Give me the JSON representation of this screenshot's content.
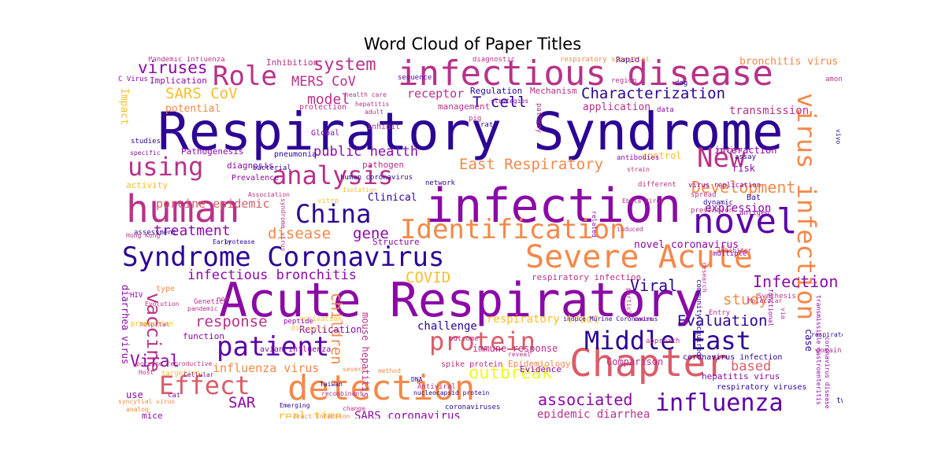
{
  "title": "Word Cloud of Paper Titles",
  "colors": {
    "c1": "#2c0594",
    "c2": "#5c01a6",
    "c3": "#8b0aa5",
    "c4": "#b83289",
    "c5": "#db5c68",
    "c6": "#f48849",
    "c7": "#febc2a",
    "c8": "#f0f921"
  },
  "words": [
    {
      "t": "Respiratory Syndrome",
      "c": "c1"
    },
    {
      "t": "Acute Respiratory",
      "c": "c3"
    },
    {
      "t": "infection",
      "c": "c3"
    },
    {
      "t": "infectious disease",
      "c": "c4"
    },
    {
      "t": "human",
      "c": "c4"
    },
    {
      "t": "detection",
      "c": "c6"
    },
    {
      "t": "Chapter",
      "c": "c5"
    },
    {
      "t": "Severe Acute",
      "c": "c6"
    },
    {
      "t": "virus infection",
      "c": "c6"
    },
    {
      "t": "novel",
      "c": "c2"
    },
    {
      "t": "Syndrome Coronavirus",
      "c": "c1"
    },
    {
      "t": "patient",
      "c": "c2"
    },
    {
      "t": "Identification",
      "c": "c6"
    },
    {
      "t": "Middle East",
      "c": "c1"
    },
    {
      "t": "protein",
      "c": "c5"
    },
    {
      "t": "Effect",
      "c": "c5"
    },
    {
      "t": "influenza",
      "c": "c2"
    },
    {
      "t": "analysis",
      "c": "c4"
    },
    {
      "t": "using",
      "c": "c4"
    },
    {
      "t": "China",
      "c": "c1"
    },
    {
      "t": "Role",
      "c": "c4"
    },
    {
      "t": "New",
      "c": "c4"
    },
    {
      "t": "Development",
      "c": "c6"
    },
    {
      "t": "outbreak",
      "c": "c8"
    },
    {
      "t": "Characterization",
      "c": "c1"
    },
    {
      "t": "East Respiratory",
      "c": "c6"
    },
    {
      "t": "system",
      "c": "c4"
    },
    {
      "t": "viruses",
      "c": "c3"
    },
    {
      "t": "SARS CoV",
      "c": "c7"
    },
    {
      "t": "MERS CoV",
      "c": "c4"
    },
    {
      "t": "T cell",
      "c": "c1"
    },
    {
      "t": "model",
      "c": "c4"
    },
    {
      "t": "Evaluation",
      "c": "c1"
    },
    {
      "t": "study",
      "c": "c6"
    },
    {
      "t": "Viral",
      "c": "c1"
    },
    {
      "t": "Viral",
      "c": "c3"
    },
    {
      "t": "Infection",
      "c": "c3"
    },
    {
      "t": "treatment",
      "c": "c3"
    },
    {
      "t": "response",
      "c": "c4"
    },
    {
      "t": "associated",
      "c": "c3"
    },
    {
      "t": "based",
      "c": "c5"
    },
    {
      "t": "COVID",
      "c": "c7"
    },
    {
      "t": "disease",
      "c": "c6"
    },
    {
      "t": "gene",
      "c": "c3"
    },
    {
      "t": "vaccine",
      "c": "c4"
    },
    {
      "t": "children",
      "c": "c6"
    },
    {
      "t": "infectious bronchitis",
      "c": "c3"
    },
    {
      "t": "public health",
      "c": "c3"
    },
    {
      "t": "porcine epidemic",
      "c": "c5"
    },
    {
      "t": "SAR",
      "c": "c3"
    },
    {
      "t": "influenza virus",
      "c": "c6"
    },
    {
      "t": "real time",
      "c": "c7"
    },
    {
      "t": "SARS coronavirus",
      "c": "c3"
    },
    {
      "t": "epidemic diarrhea",
      "c": "c4"
    },
    {
      "t": "respiratory tract",
      "c": "c7"
    },
    {
      "t": "transmission",
      "c": "c4"
    },
    {
      "t": "application",
      "c": "c4"
    },
    {
      "t": "expression",
      "c": "c3"
    },
    {
      "t": "receptor",
      "c": "c4"
    },
    {
      "t": "bronchitis virus",
      "c": "c6"
    },
    {
      "t": "challenge",
      "c": "c1"
    },
    {
      "t": "Clinical",
      "c": "c1"
    },
    {
      "t": "novel coronavirus",
      "c": "c3"
    },
    {
      "t": "respiratory infection",
      "c": "c4"
    },
    {
      "t": "immune response",
      "c": "c4"
    },
    {
      "t": "Comparison",
      "c": "c4"
    },
    {
      "t": "interaction",
      "c": "c3"
    },
    {
      "t": "risk",
      "c": "c3"
    },
    {
      "t": "control",
      "c": "c7"
    },
    {
      "t": "Impact",
      "c": "c7"
    },
    {
      "t": "potential",
      "c": "c6"
    },
    {
      "t": "Implication",
      "c": "c3"
    },
    {
      "t": "Inhibition",
      "c": "c4"
    },
    {
      "t": "Pathogenesis",
      "c": "c3"
    },
    {
      "t": "diagnosis",
      "c": "c3"
    },
    {
      "t": "pathogen",
      "c": "c4"
    },
    {
      "t": "activity",
      "c": "c7"
    },
    {
      "t": "Prevalence",
      "c": "c3"
    },
    {
      "t": "pneumonia",
      "c": "c1"
    },
    {
      "t": "Replication",
      "c": "c3"
    },
    {
      "t": "Structure",
      "c": "c3"
    },
    {
      "t": "use",
      "c": "c3"
    },
    {
      "t": "mice",
      "c": "c3"
    },
    {
      "t": "function",
      "c": "c3"
    },
    {
      "t": "type",
      "c": "c6"
    },
    {
      "t": "diarrhea virus",
      "c": "c3"
    },
    {
      "t": "hepatitis virus",
      "c": "c3"
    },
    {
      "t": "respiratory viruses",
      "c": "c1"
    },
    {
      "t": "coronavirus infection",
      "c": "c1"
    },
    {
      "t": "spike protein",
      "c": "c4"
    },
    {
      "t": "mouse hepatitis",
      "c": "c4"
    },
    {
      "t": "avian influenza",
      "c": "c3"
    },
    {
      "t": "case",
      "c": "c1"
    },
    {
      "t": "two",
      "c": "c1"
    },
    {
      "t": "Bat",
      "c": "c1"
    },
    {
      "t": "Epidemiology",
      "c": "c6"
    },
    {
      "t": "Evidence",
      "c": "c3"
    },
    {
      "t": "management",
      "c": "c4"
    },
    {
      "t": "inhibit",
      "c": "c4"
    },
    {
      "t": "Global",
      "c": "c3"
    },
    {
      "t": "protection",
      "c": "c4"
    },
    {
      "t": "Regulation",
      "c": "c1"
    },
    {
      "t": "Mechanism",
      "c": "c4"
    },
    {
      "t": "Rapid",
      "c": "c1"
    },
    {
      "t": "region",
      "c": "c4"
    },
    {
      "t": "respiratory syncytial",
      "c": "c6"
    },
    {
      "t": "diagnostic",
      "c": "c4"
    },
    {
      "t": "Pandemic Influenza",
      "c": "c4"
    },
    {
      "t": "C Virus",
      "c": "c3"
    },
    {
      "t": "sequence",
      "c": "c2"
    },
    {
      "t": "among",
      "c": "c4"
    },
    {
      "t": "dog",
      "c": "c1"
    },
    {
      "t": "data",
      "c": "c3"
    },
    {
      "t": "pig",
      "c": "c4"
    },
    {
      "t": "rat",
      "c": "c1"
    },
    {
      "t": "pathway",
      "c": "c4"
    },
    {
      "t": "review",
      "c": "c4"
    },
    {
      "t": "assay",
      "c": "c1"
    },
    {
      "t": "antibodies",
      "c": "c3"
    },
    {
      "t": "strain",
      "c": "c4"
    },
    {
      "t": "spread",
      "c": "c4"
    },
    {
      "t": "dynamic",
      "c": "c1"
    },
    {
      "t": "prevention",
      "c": "c4"
    },
    {
      "t": "antigen",
      "c": "c3"
    },
    {
      "t": "different",
      "c": "c4"
    },
    {
      "t": "network",
      "c": "c1"
    },
    {
      "t": "human coronavirus",
      "c": "c1"
    },
    {
      "t": "bacterial",
      "c": "c1"
    },
    {
      "t": "specific",
      "c": "c3"
    },
    {
      "t": "studies",
      "c": "c1"
    },
    {
      "t": "Association",
      "c": "c4"
    },
    {
      "t": "Isolation",
      "c": "c7"
    },
    {
      "t": "vitro",
      "c": "c7"
    },
    {
      "t": "syndrome virus",
      "c": "c4"
    },
    {
      "t": "assessment",
      "c": "c1"
    },
    {
      "t": "Early",
      "c": "c1"
    },
    {
      "t": "protease",
      "c": "c1"
    },
    {
      "t": "Hong Kong",
      "c": "c4"
    },
    {
      "t": "HIV",
      "c": "c3"
    },
    {
      "t": "Evolution",
      "c": "c4"
    },
    {
      "t": "non",
      "c": "c4"
    },
    {
      "t": "Genetic",
      "c": "c4"
    },
    {
      "t": "pandemic",
      "c": "c4"
    },
    {
      "t": "hospital",
      "c": "c4"
    },
    {
      "t": "production",
      "c": "c7"
    },
    {
      "t": "activation",
      "c": "c7"
    },
    {
      "t": "peptide",
      "c": "c3"
    },
    {
      "t": "Discovery",
      "c": "c7"
    },
    {
      "t": "porcine reproductive",
      "c": "c4"
    },
    {
      "t": "Host",
      "c": "c4"
    },
    {
      "t": "targeting",
      "c": "c7"
    },
    {
      "t": "Cellular",
      "c": "c3"
    },
    {
      "t": "Taiwan",
      "c": "c1"
    },
    {
      "t": "recombinant",
      "c": "c4"
    },
    {
      "t": "cat",
      "c": "c3"
    },
    {
      "t": "Emerging",
      "c": "c1"
    },
    {
      "t": "change",
      "c": "c4"
    },
    {
      "t": "severe",
      "c": "c6"
    },
    {
      "t": "method",
      "c": "c6"
    },
    {
      "t": "DNA",
      "c": "c1"
    },
    {
      "t": "Antiviral",
      "c": "c4"
    },
    {
      "t": "nucleocapsid protein",
      "c": "c1"
    },
    {
      "t": "outcome",
      "c": "c4"
    },
    {
      "t": "reveal",
      "c": "c4"
    },
    {
      "t": "induce Murine Coronavirus",
      "c": "c1"
    },
    {
      "t": "cause",
      "c": "c3"
    },
    {
      "t": "syncytial virus",
      "c": "c6"
    },
    {
      "t": "analog",
      "c": "c6"
    },
    {
      "t": "tract infection",
      "c": "c6"
    },
    {
      "t": "coronaviruses",
      "c": "c1"
    },
    {
      "t": "approach",
      "c": "c4"
    },
    {
      "t": "particle",
      "c": "c4"
    },
    {
      "t": "inhibitor",
      "c": "c4"
    },
    {
      "t": "multiple",
      "c": "c3"
    },
    {
      "t": "research",
      "c": "c4"
    },
    {
      "t": "Molecular",
      "c": "c4"
    },
    {
      "t": "Synthesis",
      "c": "c4"
    },
    {
      "t": "functional",
      "c": "c3"
    },
    {
      "t": "via",
      "c": "c4"
    },
    {
      "t": "domain",
      "c": "c4"
    },
    {
      "t": "Entry",
      "c": "c4"
    },
    {
      "t": "Ebola Virus",
      "c": "c4"
    },
    {
      "t": "virus replication",
      "c": "c3"
    },
    {
      "t": "community acquired",
      "c": "c1"
    },
    {
      "t": "coronavirus disease",
      "c": "c3"
    },
    {
      "t": "respiratory disease",
      "c": "c1"
    },
    {
      "t": "transmissible gastroenteritis",
      "c": "c3"
    },
    {
      "t": "vivo",
      "c": "c1"
    },
    {
      "t": "related",
      "c": "c3"
    },
    {
      "t": "induced",
      "c": "c4"
    },
    {
      "t": "health care",
      "c": "c4"
    },
    {
      "t": "hepatitis",
      "c": "c4"
    },
    {
      "t": "strategies",
      "c": "c3"
    },
    {
      "t": "adult",
      "c": "c4"
    }
  ]
}
